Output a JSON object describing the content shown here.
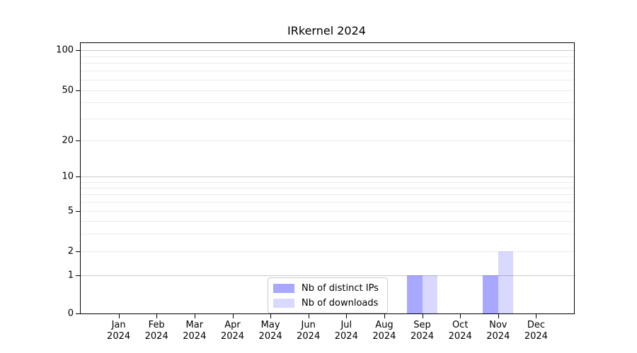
{
  "window": {
    "background": "#ffffff"
  },
  "chart_data": {
    "type": "bar",
    "title": "IRkernel 2024",
    "xlabel": "",
    "ylabel": "",
    "categories": [
      "Jan",
      "Feb",
      "Mar",
      "Apr",
      "May",
      "Jun",
      "Jul",
      "Aug",
      "Sep",
      "Oct",
      "Nov",
      "Dec"
    ],
    "category_year_line": "2024",
    "series": [
      {
        "name": "Nb of distinct IPs",
        "color": "rgba(0,0,255,0.34)",
        "values": [
          0,
          0,
          0,
          0,
          0,
          0,
          0,
          0,
          1,
          0,
          1,
          0
        ]
      },
      {
        "name": "Nb of downloads",
        "color": "rgba(0,0,255,0.15)",
        "values": [
          0,
          0,
          0,
          0,
          0,
          0,
          0,
          0,
          1,
          0,
          2,
          0
        ]
      }
    ],
    "yscale": "symlog",
    "ylim": [
      0,
      110
    ],
    "yticks": [
      0,
      1,
      2,
      5,
      10,
      20,
      50,
      100
    ],
    "y_minor_gridlines": [
      3,
      4,
      6,
      7,
      8,
      9,
      30,
      40,
      60,
      70,
      80,
      90
    ],
    "grid": "both",
    "legend_position": "inside-lower-center",
    "colors": {
      "decade_gridline": "#c9c9c9",
      "minor_gridline": "#ebebeb",
      "axis": "#000000",
      "text": "#000000"
    }
  }
}
